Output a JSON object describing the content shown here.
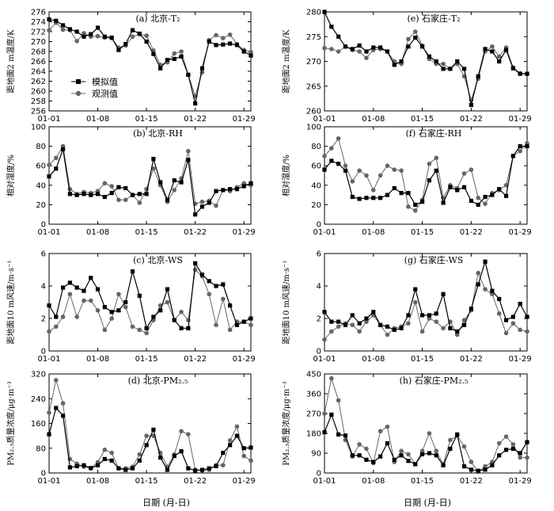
{
  "figure": {
    "xlabel": "日期 (月-日)",
    "x_ticks": [
      "01-01",
      "01-08",
      "01-15",
      "01-22",
      "01-29"
    ],
    "legend": {
      "sim": "模拟值",
      "obs": "观测值",
      "placement": "lower-left of panel (a)"
    }
  },
  "colors": {
    "sim": "#000000",
    "obs": "#666666",
    "axis": "#000000"
  },
  "chart_data": [
    {
      "id": "a",
      "type": "line",
      "title": "(a) 北京-T₂",
      "ylabel": "距地面2 m温度/K",
      "ylim": [
        256,
        276
      ],
      "yticks": [
        256,
        258,
        260,
        262,
        264,
        266,
        268,
        270,
        272,
        274,
        276
      ],
      "x": [
        1,
        2,
        3,
        4,
        5,
        6,
        7,
        8,
        9,
        10,
        11,
        12,
        13,
        14,
        15,
        16,
        17,
        18,
        19,
        20,
        21,
        22,
        23,
        24,
        25,
        26,
        27,
        28,
        29,
        30
      ],
      "series": [
        {
          "name": "模拟值",
          "values": [
            274.5,
            274.2,
            273.3,
            272.5,
            272.0,
            271.0,
            271.5,
            272.8,
            271.0,
            270.8,
            268.3,
            269.5,
            272.3,
            271.6,
            270.0,
            267.5,
            264.6,
            266.3,
            266.5,
            267.0,
            263.3,
            257.5,
            264.6,
            270.0,
            269.3,
            269.4,
            269.6,
            269.3,
            268.0,
            267.2
          ]
        },
        {
          "name": "观测值",
          "values": [
            272.3,
            273.8,
            272.4,
            272.3,
            270.1,
            271.7,
            271.0,
            271.1,
            270.8,
            270.7,
            268.8,
            269.2,
            271.0,
            271.5,
            271.2,
            268.2,
            265.3,
            265.8,
            267.6,
            268.0,
            263.3,
            259.0,
            263.8,
            270.3,
            271.3,
            270.7,
            271.4,
            269.5,
            268.3,
            267.9
          ]
        }
      ]
    },
    {
      "id": "e",
      "type": "line",
      "title": "(e) 石家庄-T₂",
      "ylabel": "距地面2 m温度/K",
      "ylim": [
        260,
        280
      ],
      "yticks": [
        260,
        265,
        270,
        275,
        280
      ],
      "x": [
        1,
        2,
        3,
        4,
        5,
        6,
        7,
        8,
        9,
        10,
        11,
        12,
        13,
        14,
        15,
        16,
        17,
        18,
        19,
        20,
        21,
        22,
        23,
        24,
        25,
        26,
        27,
        28,
        29,
        30
      ],
      "series": [
        {
          "name": "模拟值",
          "values": [
            280.0,
            277.0,
            275.0,
            273.0,
            272.5,
            273.2,
            272.0,
            272.8,
            272.8,
            272.0,
            269.3,
            270.0,
            273.0,
            274.8,
            273.0,
            271.0,
            270.0,
            268.5,
            268.5,
            270.0,
            268.5,
            261.2,
            267.0,
            272.5,
            272.0,
            270.0,
            272.3,
            268.6,
            267.5,
            267.5
          ]
        },
        {
          "name": "观测值",
          "values": [
            272.7,
            272.5,
            272.0,
            273.0,
            272.3,
            272.0,
            270.7,
            272.3,
            272.5,
            272.0,
            270.0,
            269.5,
            274.5,
            276.0,
            273.2,
            270.5,
            269.5,
            269.5,
            268.5,
            269.5,
            267.0,
            262.2,
            266.5,
            272.0,
            273.0,
            271.0,
            272.8,
            268.8,
            267.6,
            267.5
          ]
        }
      ]
    },
    {
      "id": "b",
      "type": "line",
      "title": "(b) 北京-RH",
      "ylabel": "相对湿度/%",
      "ylim": [
        0,
        100
      ],
      "yticks": [
        0,
        20,
        40,
        60,
        80,
        100
      ],
      "x": [
        1,
        2,
        3,
        4,
        5,
        6,
        7,
        8,
        9,
        10,
        11,
        12,
        13,
        14,
        15,
        16,
        17,
        18,
        19,
        20,
        21,
        22,
        23,
        24,
        25,
        26,
        27,
        28,
        29,
        30
      ],
      "series": [
        {
          "name": "模拟值",
          "values": [
            49,
            57,
            77,
            31,
            30,
            31,
            30,
            31,
            28,
            32,
            38,
            37,
            30,
            31,
            31,
            67,
            43,
            25,
            45,
            43,
            66,
            10,
            18,
            22,
            34,
            35,
            36,
            36,
            39,
            42
          ]
        },
        {
          "name": "观测值",
          "values": [
            61,
            68,
            80,
            36,
            31,
            33,
            32,
            34,
            42,
            39,
            25,
            25,
            30,
            22,
            36,
            57,
            40,
            23,
            35,
            47,
            75,
            21,
            23,
            24,
            19,
            35,
            34,
            38,
            42,
            40
          ]
        }
      ]
    },
    {
      "id": "f",
      "type": "line",
      "title": "(f) 石家庄-RH",
      "ylabel": "相对湿度/%",
      "ylim": [
        0,
        100
      ],
      "yticks": [
        0,
        20,
        40,
        60,
        80,
        100
      ],
      "x": [
        1,
        2,
        3,
        4,
        5,
        6,
        7,
        8,
        9,
        10,
        11,
        12,
        13,
        14,
        15,
        16,
        17,
        18,
        19,
        20,
        21,
        22,
        23,
        24,
        25,
        26,
        27,
        28,
        29,
        30
      ],
      "series": [
        {
          "name": "模拟值",
          "values": [
            56,
            65,
            62,
            55,
            28,
            26,
            27,
            27,
            27,
            30,
            37,
            32,
            32,
            20,
            23,
            45,
            55,
            22,
            38,
            35,
            38,
            24,
            20,
            28,
            30,
            36,
            29,
            70,
            80,
            80
          ]
        },
        {
          "name": "观测值",
          "values": [
            70,
            78,
            88,
            60,
            44,
            55,
            50,
            35,
            50,
            60,
            56,
            55,
            18,
            14,
            25,
            62,
            68,
            27,
            40,
            37,
            52,
            56,
            27,
            21,
            32,
            35,
            40,
            70,
            75,
            83
          ]
        }
      ]
    },
    {
      "id": "c",
      "type": "line",
      "title": "(c) 北京-WS",
      "ylabel": "距地面10 m风速/m·s⁻¹",
      "ylim": [
        0,
        6
      ],
      "yticks": [
        0,
        2,
        4,
        6
      ],
      "x": [
        1,
        2,
        3,
        4,
        5,
        6,
        7,
        8,
        9,
        10,
        11,
        12,
        13,
        14,
        15,
        16,
        17,
        18,
        19,
        20,
        21,
        22,
        23,
        24,
        25,
        26,
        27,
        28,
        29,
        30
      ],
      "series": [
        {
          "name": "模拟值",
          "values": [
            2.8,
            2.1,
            3.9,
            4.2,
            3.9,
            3.7,
            4.5,
            3.8,
            2.7,
            2.4,
            2.5,
            3.0,
            4.9,
            3.4,
            1.4,
            2.1,
            2.5,
            3.8,
            1.9,
            1.4,
            1.4,
            5.4,
            4.7,
            4.3,
            4.0,
            4.1,
            2.8,
            1.6,
            1.8,
            2.0
          ]
        },
        {
          "name": "观测值",
          "values": [
            1.2,
            1.5,
            2.1,
            3.5,
            2.1,
            3.1,
            3.1,
            2.5,
            1.3,
            2.0,
            3.5,
            2.7,
            1.5,
            1.3,
            1.1,
            1.9,
            2.8,
            3.0,
            1.9,
            2.4,
            1.9,
            5.0,
            4.6,
            3.5,
            1.6,
            3.2,
            1.3,
            1.8,
            1.8,
            1.6
          ]
        }
      ]
    },
    {
      "id": "g",
      "type": "line",
      "title": "(g) 石家庄-WS",
      "ylabel": "距地面10 m风速/m·s⁻¹",
      "ylim": [
        0,
        6
      ],
      "yticks": [
        0,
        2,
        4,
        6
      ],
      "x": [
        1,
        2,
        3,
        4,
        5,
        6,
        7,
        8,
        9,
        10,
        11,
        12,
        13,
        14,
        15,
        16,
        17,
        18,
        19,
        20,
        21,
        22,
        23,
        24,
        25,
        26,
        27,
        28,
        29,
        30
      ],
      "series": [
        {
          "name": "模拟值",
          "values": [
            2.4,
            1.8,
            1.8,
            1.6,
            2.2,
            1.7,
            2.0,
            2.4,
            1.6,
            1.5,
            1.3,
            1.4,
            2.2,
            3.8,
            2.2,
            2.2,
            2.3,
            3.5,
            1.4,
            1.2,
            1.6,
            2.6,
            4.1,
            5.5,
            3.7,
            3.2,
            1.9,
            2.1,
            2.9,
            2.1
          ]
        },
        {
          "name": "观测值",
          "values": [
            0.7,
            1.2,
            1.5,
            1.7,
            1.6,
            1.2,
            1.8,
            2.2,
            1.6,
            1.0,
            1.4,
            1.5,
            1.7,
            3.0,
            1.2,
            2.0,
            1.8,
            1.4,
            1.8,
            1.0,
            1.9,
            2.5,
            4.8,
            3.8,
            3.5,
            2.3,
            1.1,
            1.7,
            1.3,
            1.2
          ]
        }
      ]
    },
    {
      "id": "d",
      "type": "line",
      "title": "(d) 北京-PM₂.₅",
      "ylabel": "PM₂.₅质量浓度/μg·m⁻³",
      "ylim": [
        0,
        320
      ],
      "yticks": [
        0,
        80,
        160,
        240,
        320
      ],
      "x": [
        1,
        2,
        3,
        4,
        5,
        6,
        7,
        8,
        9,
        10,
        11,
        12,
        13,
        14,
        15,
        16,
        17,
        18,
        19,
        20,
        21,
        22,
        23,
        24,
        25,
        26,
        27,
        28,
        29,
        30
      ],
      "series": [
        {
          "name": "模拟值",
          "values": [
            125,
            210,
            185,
            18,
            22,
            25,
            16,
            25,
            45,
            40,
            15,
            10,
            15,
            40,
            90,
            140,
            50,
            10,
            55,
            70,
            15,
            8,
            10,
            15,
            22,
            65,
            90,
            120,
            80,
            82
          ]
        },
        {
          "name": "观测值",
          "values": [
            195,
            300,
            225,
            45,
            30,
            20,
            15,
            35,
            75,
            65,
            15,
            15,
            20,
            60,
            120,
            120,
            65,
            20,
            60,
            135,
            125,
            10,
            8,
            10,
            25,
            25,
            105,
            150,
            55,
            40
          ]
        }
      ]
    },
    {
      "id": "h",
      "type": "line",
      "title": "(h) 石家庄-PM₂.₅",
      "ylabel": "PM₂.₅质量浓度/μg·m⁻³",
      "ylim": [
        0,
        450
      ],
      "yticks": [
        0,
        90,
        180,
        270,
        360,
        450
      ],
      "x": [
        1,
        2,
        3,
        4,
        5,
        6,
        7,
        8,
        9,
        10,
        11,
        12,
        13,
        14,
        15,
        16,
        17,
        18,
        19,
        20,
        21,
        22,
        23,
        24,
        25,
        26,
        27,
        28,
        29,
        30
      ],
      "series": [
        {
          "name": "模拟值",
          "values": [
            185,
            265,
            175,
            170,
            80,
            80,
            60,
            50,
            75,
            135,
            60,
            80,
            55,
            40,
            85,
            90,
            80,
            35,
            110,
            175,
            30,
            15,
            10,
            15,
            35,
            80,
            105,
            110,
            90,
            140
          ]
        },
        {
          "name": "观测值",
          "values": [
            270,
            430,
            330,
            150,
            75,
            130,
            110,
            45,
            190,
            210,
            50,
            100,
            85,
            40,
            100,
            180,
            100,
            40,
            150,
            170,
            120,
            50,
            5,
            30,
            50,
            135,
            165,
            130,
            70,
            70
          ]
        }
      ]
    }
  ]
}
